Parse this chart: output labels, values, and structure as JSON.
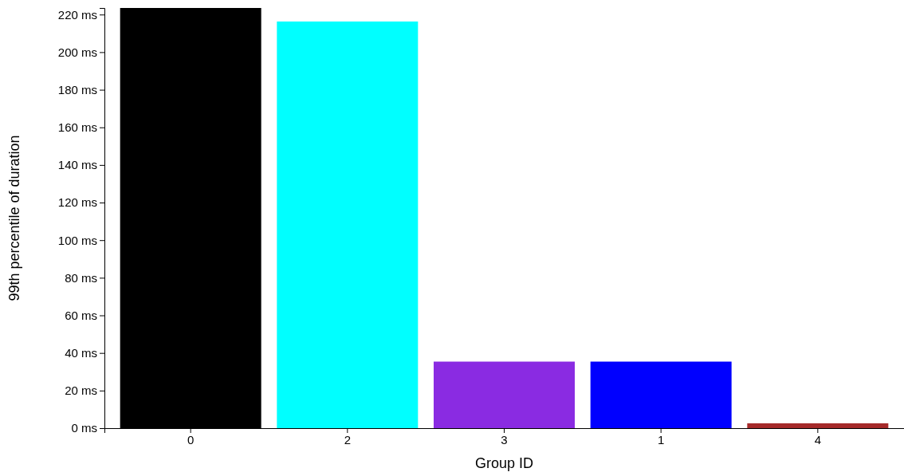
{
  "chart_data": {
    "type": "bar",
    "xlabel": "Group ID",
    "ylabel": "99th percentile of duration",
    "categories": [
      "0",
      "2",
      "3",
      "1",
      "4"
    ],
    "values": [
      223.5,
      216.3,
      35.4,
      35.4,
      2.6
    ],
    "colors": [
      "#000000",
      "#00ffff",
      "#8a2be2",
      "#0000ff",
      "#a52a2a"
    ],
    "ylim": [
      0,
      223.5
    ],
    "yticks": [
      {
        "value": 0,
        "label": "0 ms"
      },
      {
        "value": 20,
        "label": "20 ms"
      },
      {
        "value": 40,
        "label": "40 ms"
      },
      {
        "value": 60,
        "label": "60 ms"
      },
      {
        "value": 80,
        "label": "80 ms"
      },
      {
        "value": 100,
        "label": "100 ms"
      },
      {
        "value": 120,
        "label": "120 ms"
      },
      {
        "value": 140,
        "label": "140 ms"
      },
      {
        "value": 160,
        "label": "160 ms"
      },
      {
        "value": 180,
        "label": "180 ms"
      },
      {
        "value": 200,
        "label": "200 ms"
      },
      {
        "value": 220,
        "label": "220 ms"
      }
    ]
  }
}
